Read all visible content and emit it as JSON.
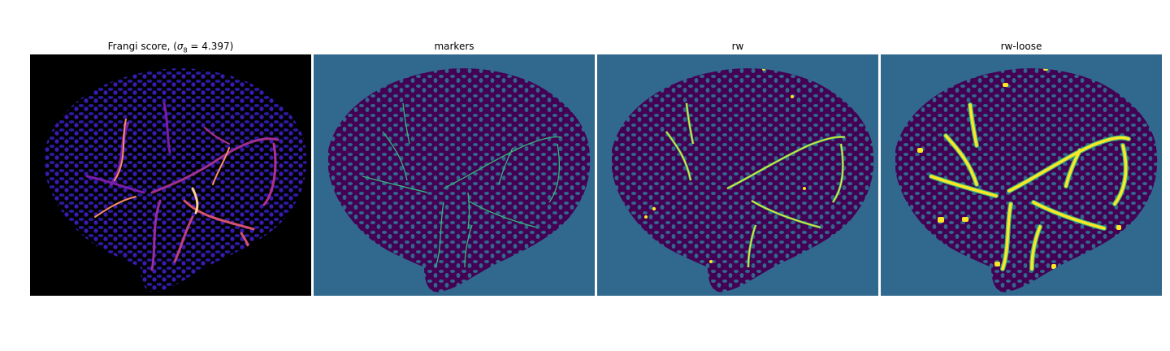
{
  "figure": {
    "panels": [
      {
        "title_main": "Frangi score, (",
        "title_sigma": "σ",
        "title_sub": "8",
        "title_rest": " = 4.397)",
        "colormap": "magma"
      },
      {
        "title": "markers",
        "colormap": "viridis"
      },
      {
        "title": "rw",
        "colormap": "viridis"
      },
      {
        "title": "rw-loose",
        "colormap": "viridis"
      }
    ]
  },
  "colors": {
    "black_background": "#000000",
    "viridis_background": "#31688e",
    "tissue_dark_purple": "#440154",
    "frangi_blue": "#2a1aa0",
    "frangi_purple": "#7a1da8",
    "frangi_orange": "#f98e5f",
    "frangi_yellow": "#fcd38c",
    "marker_green": "#35b779",
    "segment_yellow": "#fde725"
  }
}
